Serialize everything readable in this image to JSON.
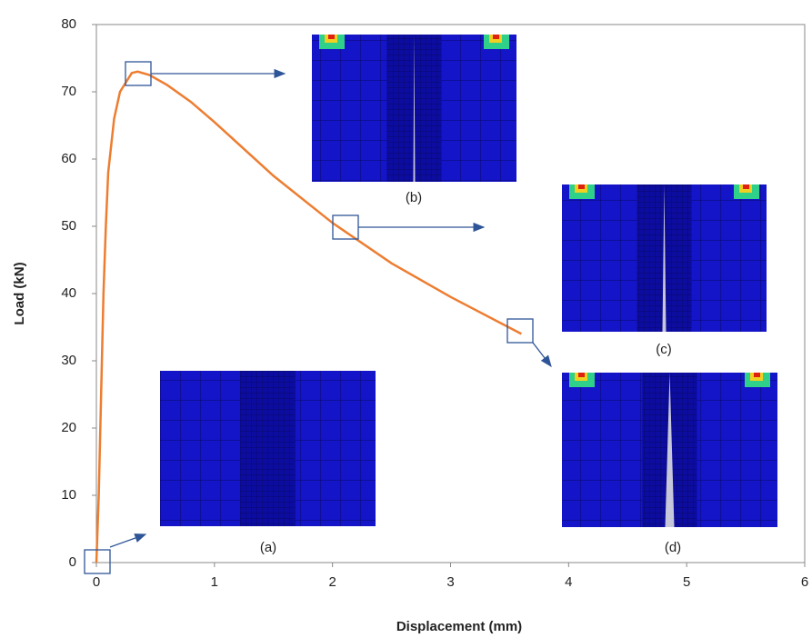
{
  "chart_data": {
    "type": "line",
    "x": [
      0,
      0.02,
      0.04,
      0.06,
      0.08,
      0.1,
      0.15,
      0.2,
      0.3,
      0.35,
      0.45,
      0.6,
      0.8,
      1.0,
      1.5,
      2.0,
      2.5,
      3.0,
      3.6
    ],
    "values": [
      0,
      10,
      25,
      40,
      50,
      58,
      66,
      70,
      72.8,
      73,
      72.5,
      71,
      68.5,
      65.5,
      57.5,
      50.5,
      44.5,
      39.5,
      34
    ],
    "color": "#ed7d31",
    "xlabel": "Displacement (mm)",
    "ylabel": "Load  (kN)",
    "xlim": [
      0,
      6
    ],
    "ylim": [
      0,
      80
    ],
    "xticks": [
      0,
      1,
      2,
      3,
      4,
      5,
      6
    ],
    "yticks": [
      0,
      10,
      20,
      30,
      40,
      50,
      60,
      70,
      80
    ],
    "grid": false,
    "annotations": [
      "(a)",
      "(b)",
      "(c)",
      "(d)"
    ]
  }
}
